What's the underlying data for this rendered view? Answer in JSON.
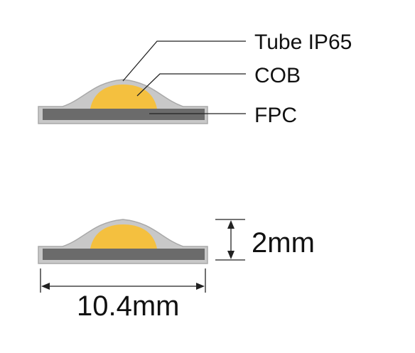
{
  "labels": {
    "tube": "Tube IP65",
    "cob": "COB",
    "fpc": "FPC",
    "height": "2mm",
    "width": "10.4mm"
  },
  "colors": {
    "tube": "#c8c8c8",
    "tube_outline": "#a7a7a7",
    "cob": "#f4c03f",
    "fpc": "#6b6b6b",
    "leader": "#222222",
    "dimension": "#222222",
    "background": "#ffffff"
  }
}
